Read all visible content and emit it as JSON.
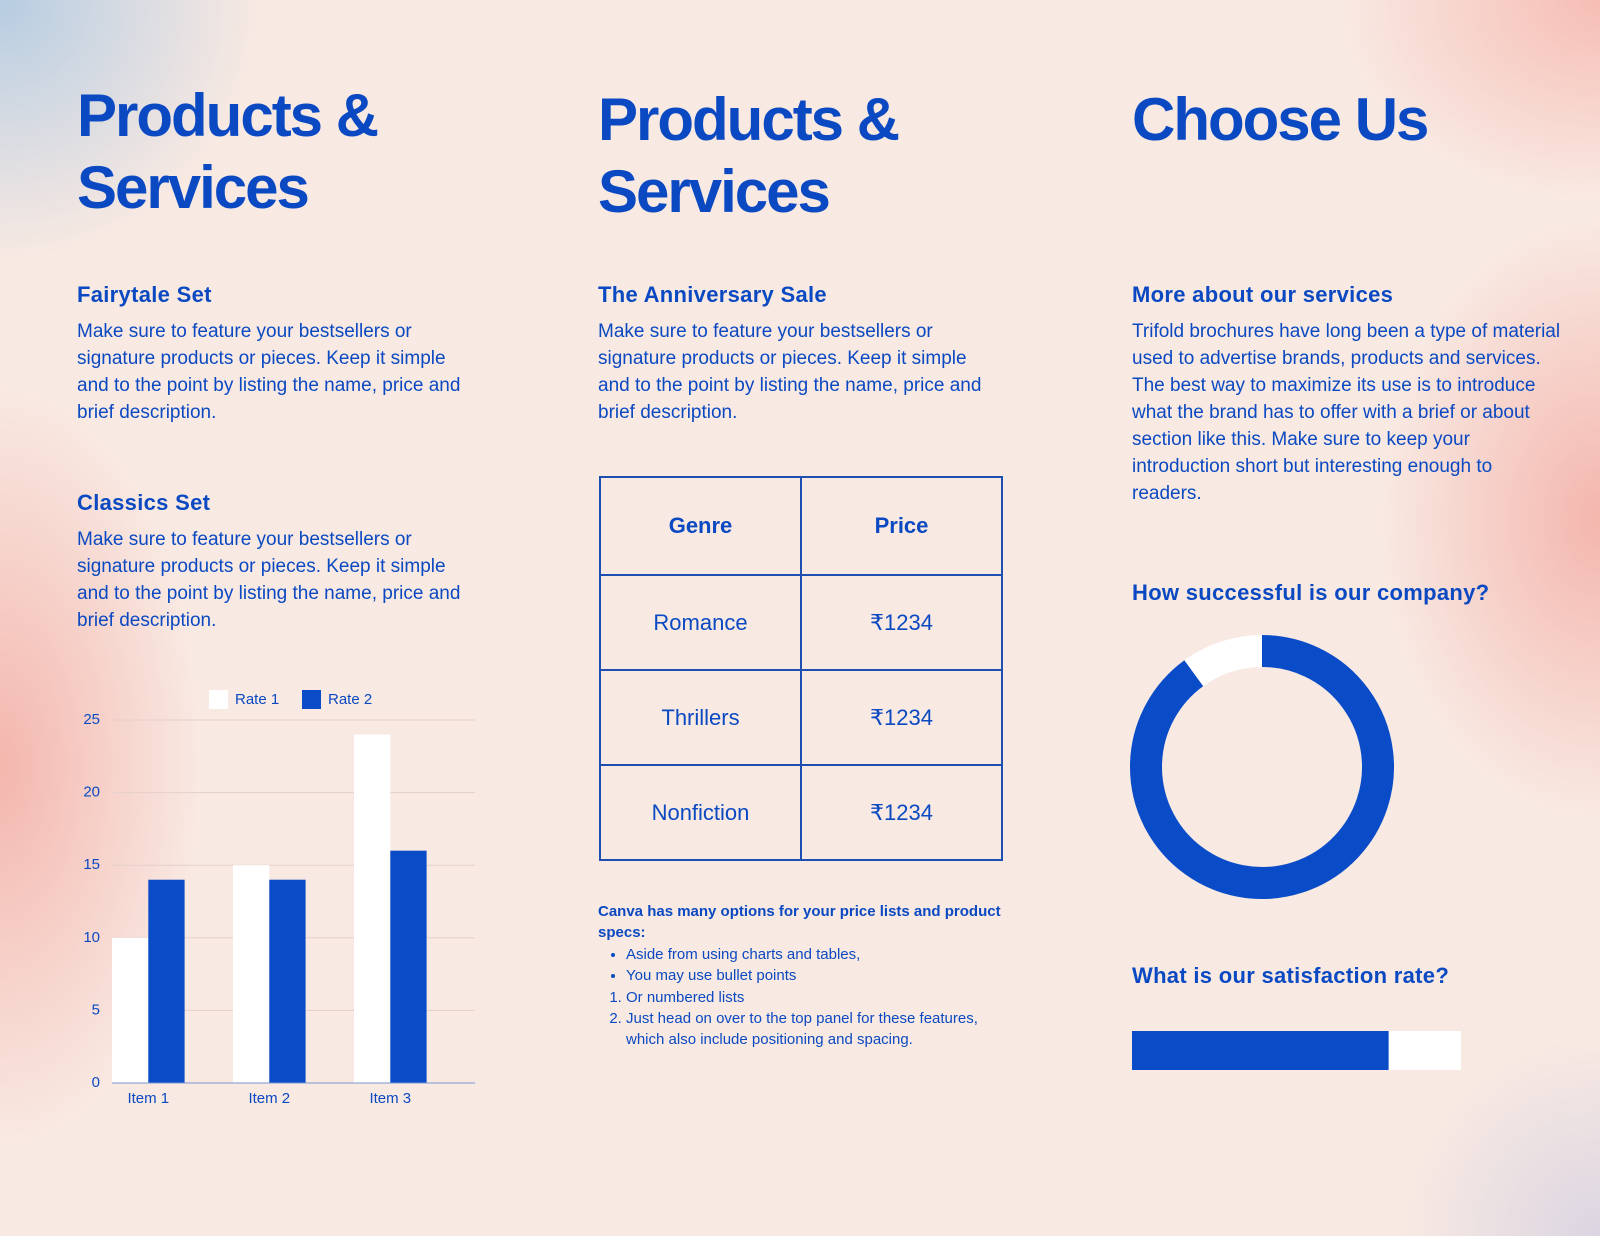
{
  "left": {
    "title": "Products & Services",
    "sections": [
      {
        "heading": "Fairytale Set",
        "body": "Make sure to feature your bestsellers or signature products or pieces. Keep it simple and to the point by listing the name, price and brief description."
      },
      {
        "heading": "Classics Set",
        "body": "Make sure to feature your bestsellers or signature products or pieces. Keep it simple and to the point by listing the name, price and brief description."
      }
    ]
  },
  "middle": {
    "title": "Products & Services",
    "heading": "The Anniversary Sale",
    "body": "Make sure to feature your bestsellers or signature products or pieces. Keep it simple and to the point by listing the name, price and brief description.",
    "table": {
      "header": [
        "Genre",
        "Price"
      ],
      "rows": [
        [
          "Romance",
          "₹1234"
        ],
        [
          "Thrillers",
          "₹1234"
        ],
        [
          "Nonfiction",
          "₹1234"
        ]
      ]
    },
    "notes": {
      "lead": "Canva has many options for your price lists and product specs:",
      "bullets": [
        "Aside from using charts and tables,",
        "You may use bullet points"
      ],
      "numbered": [
        "Or numbered lists",
        "Just head on over to the top panel for these features, which also include positioning and spacing."
      ]
    }
  },
  "right": {
    "title": "Choose Us",
    "heading": "More about our services",
    "body": "Trifold brochures have long been a type of material used to advertise brands, products and services. The best way to maximize its use is to introduce what the brand has to offer with a brief or about section like this. Make sure to keep your introduction short but interesting enough to readers.",
    "donut_heading": "How successful is our company?",
    "progress_heading": "What is our satisfaction rate?"
  },
  "chart_data": [
    {
      "type": "bar",
      "categories": [
        "Item 1",
        "Item 2",
        "Item 3"
      ],
      "series": [
        {
          "name": "Rate 1",
          "color": "#ffffff",
          "values": [
            10,
            15,
            24
          ]
        },
        {
          "name": "Rate 2",
          "color": "#0a4cc8",
          "values": [
            14,
            14,
            16
          ]
        }
      ],
      "ylim": [
        0,
        25
      ],
      "yticks": [
        0,
        5,
        10,
        15,
        20,
        25
      ],
      "grid": true,
      "legend": "top"
    },
    {
      "type": "donut",
      "values": [
        90,
        10
      ],
      "colors": [
        "#0a4cc8",
        "#ffffff"
      ]
    },
    {
      "type": "progress",
      "values": [
        78
      ],
      "xlim": [
        0,
        100
      ],
      "color": "#0a4cc8",
      "track_color": "#ffffff"
    }
  ]
}
